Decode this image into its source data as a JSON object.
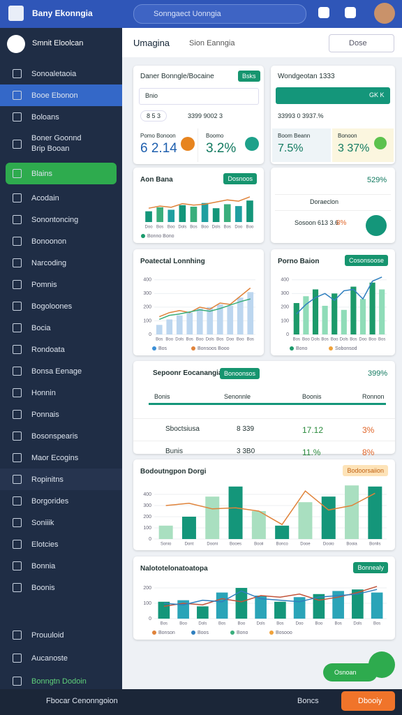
{
  "header": {
    "app_title": "Bany Ekonngia",
    "search": "Sonngaect Uonngia"
  },
  "sidebar": {
    "brand": "Smnit Eloolcan",
    "items": [
      "Sonoaletaoia",
      "Booe Ebonon",
      "Boloans",
      "Boner Goonnd Brip Booan",
      "Blains",
      "Acodain",
      "Sonontoncing",
      "Bonoonon",
      "Narcoding",
      "Pomnis",
      "Bogoloones",
      "Bocia",
      "Rondoata",
      "Bonsa Eenage",
      "Honnin",
      "Ponnais",
      "Bosonspearis",
      "Maor Ecogins",
      "Ropinitns",
      "Borgorides",
      "Soniiik",
      "Elotcies",
      "Bonnia",
      "Boonis"
    ],
    "footer": [
      "Prouuloid",
      "Aucanoste",
      "Bonngtn Dodoin"
    ]
  },
  "main": {
    "title": "Umagina",
    "tab": "Sion Eanngia",
    "search": "Dose"
  },
  "card_left": {
    "title": "Daner Bonngle/Bocaine",
    "badge": "Bsks",
    "input": "Bnio",
    "pill": "8 5 3",
    "number": "3399 9002 3",
    "stats": [
      {
        "label": "Pomo Bonoon",
        "value": "6 2.14"
      },
      {
        "label": "Boomo",
        "value": "3.2%"
      }
    ]
  },
  "card_right": {
    "title": "Wondgeotan 1333",
    "bar_text": "GK K",
    "number": "33993 0 3937.%",
    "stats": [
      {
        "label": "Boom Beann",
        "value": "7.5%"
      },
      {
        "label": "Bonoon",
        "value": "3 37%"
      }
    ]
  },
  "card_status": {
    "value": "529%",
    "select": "Doraeclon",
    "line": "Sosoon 613 3.6",
    "percent": "8%"
  },
  "charts": [
    {
      "title": "Aon Bana",
      "badge": "Dosnoos",
      "ylim": [
        0,
        100
      ],
      "categories": [
        "Doo",
        "Bos",
        "Boo",
        "Dols",
        "Bos",
        "Boo",
        "Dols",
        "Bos",
        "Doo",
        "Boo"
      ],
      "bars": {
        "colors": [
          "#14967a",
          "#3aae7c",
          "#1f9fa0"
        ],
        "values": [
          35,
          48,
          40,
          55,
          50,
          62,
          45,
          58,
          52,
          70
        ]
      },
      "lines": [
        {
          "color": "#e0833a",
          "values": [
            45,
            52,
            48,
            60,
            55,
            58,
            65,
            72,
            68,
            82
          ]
        }
      ],
      "legend": [
        {
          "color": "#1a9a6c",
          "label": "Bonno Bono"
        }
      ]
    },
    {
      "title": "Poatectal Lonnhing",
      "ylim": [
        0,
        450
      ],
      "yticks": [
        0,
        100,
        200,
        300,
        400
      ],
      "categories": [
        "Bos",
        "Boo",
        "Dols",
        "Bos",
        "Boo",
        "Dols",
        "Bos",
        "Doo",
        "Boo",
        "Bos"
      ],
      "bars": {
        "colors": [
          "#bcd6ef"
        ],
        "values": [
          70,
          110,
          140,
          160,
          190,
          200,
          220,
          210,
          270,
          310
        ]
      },
      "lines": [
        {
          "color": "#e0833a",
          "values": [
            130,
            160,
            175,
            160,
            200,
            185,
            230,
            220,
            280,
            340
          ]
        },
        {
          "color": "#3aae7c",
          "values": [
            110,
            140,
            150,
            165,
            180,
            170,
            190,
            215,
            240,
            260
          ]
        }
      ],
      "legend": [
        {
          "color": "#3b8fd6",
          "label": "Bos"
        },
        {
          "color": "#e0833a",
          "label": "Bonsoos Booo"
        }
      ]
    },
    {
      "title": "Porno Baion",
      "badge": "Cosonsoose",
      "ylim": [
        0,
        450
      ],
      "yticks": [
        0,
        100,
        200,
        300,
        400
      ],
      "categories": [
        "Bos",
        "Boo",
        "Dols",
        "Bos",
        "Boo",
        "Dols",
        "Bos",
        "Doo",
        "Boo",
        "Bos"
      ],
      "bars": {
        "colors": [
          "#1c9a6a",
          "#8fdcb8"
        ],
        "values": [
          230,
          280,
          330,
          210,
          300,
          180,
          350,
          260,
          380,
          330
        ]
      },
      "lines": [
        {
          "color": "#2f7fbf",
          "values": [
            150,
            220,
            270,
            300,
            250,
            320,
            330,
            260,
            390,
            420
          ]
        }
      ],
      "legend": [
        {
          "color": "#1c9a6a",
          "label": "Bono"
        },
        {
          "color": "#f0a23a",
          "label": "Sobonsod"
        }
      ]
    },
    {
      "title": "Bodoutngpon Dorgi",
      "badge": "Bodoorsaiion",
      "ylim": [
        0,
        500
      ],
      "yticks": [
        0,
        100,
        200,
        300,
        400
      ],
      "categories": [
        "Sonio",
        "Dont",
        "Dooni",
        "Booes",
        "Booii",
        "Bonco",
        "Dooe",
        "Dooio",
        "Booia",
        "Bonlis"
      ],
      "bars": {
        "colors": [
          "#a9dfc0",
          "#14967a"
        ],
        "values": [
          120,
          200,
          380,
          470,
          250,
          120,
          330,
          380,
          480,
          470
        ]
      },
      "lines": [
        {
          "color": "#e0833a",
          "values": [
            300,
            320,
            270,
            280,
            250,
            130,
            430,
            260,
            300,
            410
          ]
        }
      ]
    },
    {
      "title": "Nalototelonatoatopa",
      "badge": "Bonnealy",
      "ylim": [
        0,
        250
      ],
      "yticks": [
        0,
        100,
        200
      ],
      "categories": [
        "Bos",
        "Boo",
        "Dols",
        "Bos",
        "Boo",
        "Dols",
        "Bos",
        "Doo",
        "Boo",
        "Bos",
        "Dols",
        "Bos"
      ],
      "bars": {
        "colors": [
          "#14967a",
          "#2aa4b8"
        ],
        "values": [
          110,
          120,
          80,
          170,
          200,
          150,
          110,
          140,
          160,
          180,
          190,
          170
        ],
        "_": null
      },
      "lines": [
        {
          "color": "#c2543a",
          "values": [
            80,
            100,
            90,
            130,
            110,
            150,
            140,
            160,
            120,
            140,
            170,
            210
          ]
        },
        {
          "color": "#2f7fbf",
          "values": [
            100,
            90,
            120,
            110,
            180,
            130,
            120,
            110,
            140,
            150,
            160,
            190
          ]
        }
      ],
      "legend": [
        {
          "color": "#e0833a",
          "label": "Bonson"
        },
        {
          "color": "#2f7fbf",
          "label": "Boos"
        },
        {
          "color": "#3aae7c",
          "label": "Bono"
        },
        {
          "color": "#f0a23a",
          "label": "Bosooo"
        }
      ]
    }
  ],
  "table": {
    "title": "Sepoonr Eocanangia",
    "badge": "Bonoonsos",
    "total": "399%",
    "columns": [
      "Bonis",
      "Senonnle",
      "Boonis",
      "Ronnon"
    ],
    "rows": [
      [
        "Sboctsiusa",
        "8 339",
        "17.12",
        "3%"
      ],
      [
        "Bunis",
        "3 3B0",
        "11.%",
        "8%"
      ]
    ]
  },
  "fab": "Osnoan",
  "bottom": {
    "left": "Fbocar Cenonngoion",
    "middle": "Boncs",
    "button": "Dbooiy"
  }
}
